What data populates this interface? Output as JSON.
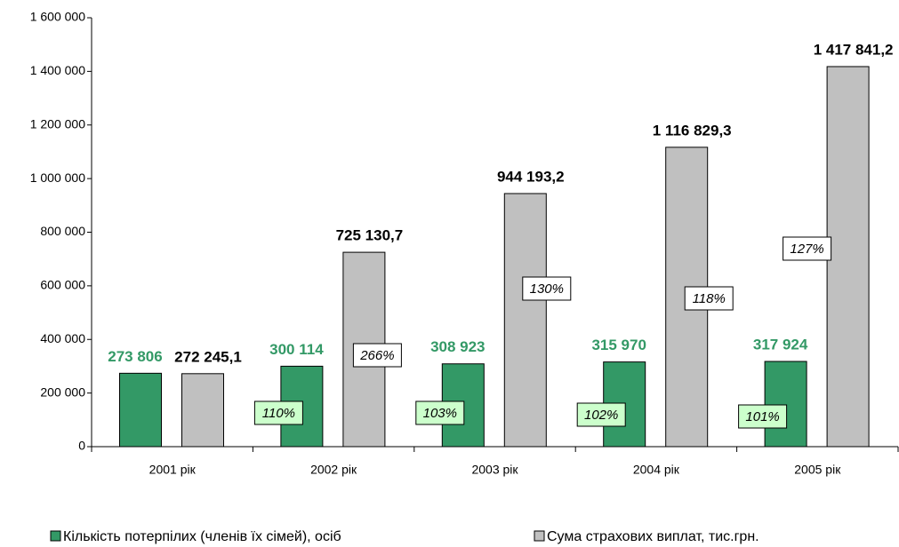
{
  "chart_data": {
    "type": "bar",
    "categories": [
      "2001 рік",
      "2002 рік",
      "2003 рік",
      "2004 рік",
      "2005 рік"
    ],
    "series": [
      {
        "name": "Кількість потерпілих (членів їх сімей), осіб",
        "color": "#339966",
        "label_color": "#339966",
        "values": [
          273806,
          300114,
          308923,
          315970,
          317924
        ],
        "value_labels": [
          "273 806",
          "300 114",
          "308 923",
          "315 970",
          "317 924"
        ],
        "growth_labels": [
          null,
          "110%",
          "103%",
          "102%",
          "101%"
        ],
        "growth_box_color": "#ccffcc"
      },
      {
        "name": "Сума страхових виплат, тис.грн.",
        "color": "#c0c0c0",
        "label_color": "#000000",
        "values": [
          272245.1,
          725130.7,
          944193.2,
          1116829.3,
          1417841.2
        ],
        "value_labels": [
          "272 245,1",
          "725 130,7",
          "944 193,2",
          "1 116 829,3",
          "1 417 841,2"
        ],
        "growth_labels": [
          null,
          "266%",
          "130%",
          "118%",
          "127%"
        ],
        "growth_box_color": "#ffffff"
      }
    ],
    "ylim": [
      0,
      1600000
    ],
    "yticks": [
      0,
      {
        "value": 200000,
        "label": "200 000"
      },
      {
        "value": 400000,
        "label": "400 000"
      },
      {
        "value": 600000,
        "label": "600 000"
      },
      {
        "value": 800000,
        "label": "800 000"
      },
      {
        "value": 1000000,
        "label": "1 000 000"
      },
      {
        "value": 1200000,
        "label": "1 200 000"
      },
      {
        "value": 1400000,
        "label": "1 400 000"
      },
      {
        "value": 1600000,
        "label": "1 600 000"
      }
    ],
    "legend": "bottom"
  }
}
